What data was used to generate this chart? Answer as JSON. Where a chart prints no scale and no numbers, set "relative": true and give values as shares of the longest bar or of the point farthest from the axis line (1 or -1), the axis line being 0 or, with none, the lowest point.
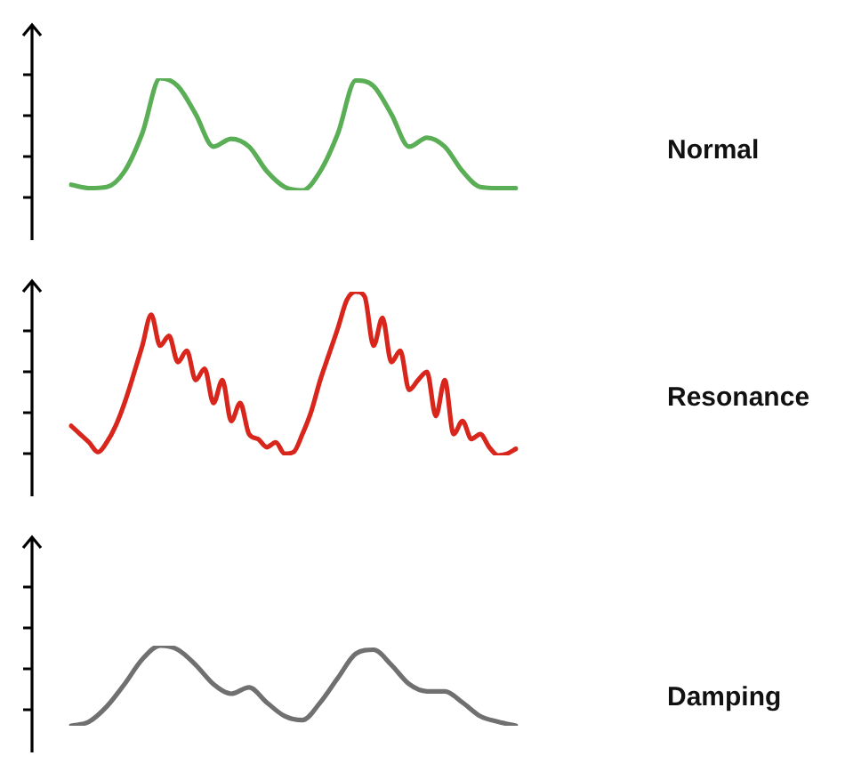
{
  "chart_data": [
    {
      "type": "line",
      "relative": true,
      "legend": false,
      "marker": "none",
      "categories": [
        null,
        null,
        null,
        null,
        null,
        null,
        null,
        null,
        null,
        null,
        null,
        null,
        null,
        null,
        null,
        null,
        null,
        null,
        null,
        null,
        null,
        null,
        null,
        null,
        null,
        null
      ],
      "series": [
        {
          "name": "Normal",
          "color": "#5aae55",
          "values": [
            0.05,
            0.02,
            0.03,
            0.17,
            0.51,
            1,
            0.93,
            0.68,
            0.39,
            0.46,
            0.39,
            0.17,
            0.03,
            0,
            0.17,
            0.51,
            0.98,
            0.93,
            0.68,
            0.39,
            0.47,
            0.39,
            0.17,
            0.03,
            0.02,
            0.02
          ]
        }
      ]
    },
    {
      "type": "line",
      "relative": true,
      "legend": false,
      "marker": "none",
      "categories": [
        null,
        null,
        null,
        null,
        null,
        null,
        null,
        null,
        null,
        null,
        null,
        null,
        null,
        null,
        null,
        null,
        null,
        null,
        null,
        null,
        null,
        null,
        null,
        null,
        null,
        null,
        null,
        null,
        null,
        null,
        null,
        null,
        null,
        null,
        null,
        null,
        null,
        null,
        null,
        null,
        null,
        null,
        null,
        null,
        null,
        null,
        null,
        null,
        null,
        null,
        null
      ],
      "series": [
        {
          "name": "Resonance",
          "color": "#d9261c",
          "values": [
            0.18,
            0.13,
            0.08,
            0.02,
            0.08,
            0.18,
            0.32,
            0.49,
            0.67,
            0.86,
            0.67,
            0.73,
            0.57,
            0.64,
            0.46,
            0.53,
            0.32,
            0.46,
            0.21,
            0.32,
            0.13,
            0.1,
            0.05,
            0.08,
            0.01,
            0.02,
            0.13,
            0.27,
            0.46,
            0.62,
            0.78,
            0.95,
            1,
            0.97,
            0.67,
            0.84,
            0.57,
            0.64,
            0.4,
            0.46,
            0.51,
            0.24,
            0.46,
            0.13,
            0.21,
            0.1,
            0.13,
            0.05,
            0,
            0.01,
            0.04
          ]
        }
      ]
    },
    {
      "type": "line",
      "relative": true,
      "legend": false,
      "marker": "none",
      "categories": [
        null,
        null,
        null,
        null,
        null,
        null,
        null,
        null,
        null,
        null,
        null,
        null,
        null,
        null,
        null,
        null,
        null,
        null,
        null,
        null,
        null,
        null,
        null,
        null,
        null,
        null
      ],
      "series": [
        {
          "name": "Damping",
          "color": "#707070",
          "values": [
            0,
            0.05,
            0.24,
            0.52,
            0.83,
            1,
            0.95,
            0.76,
            0.52,
            0.4,
            0.48,
            0.29,
            0.12,
            0.07,
            0.29,
            0.6,
            0.9,
            0.95,
            0.76,
            0.52,
            0.43,
            0.43,
            0.29,
            0.12,
            0.05,
            0
          ]
        }
      ]
    }
  ]
}
